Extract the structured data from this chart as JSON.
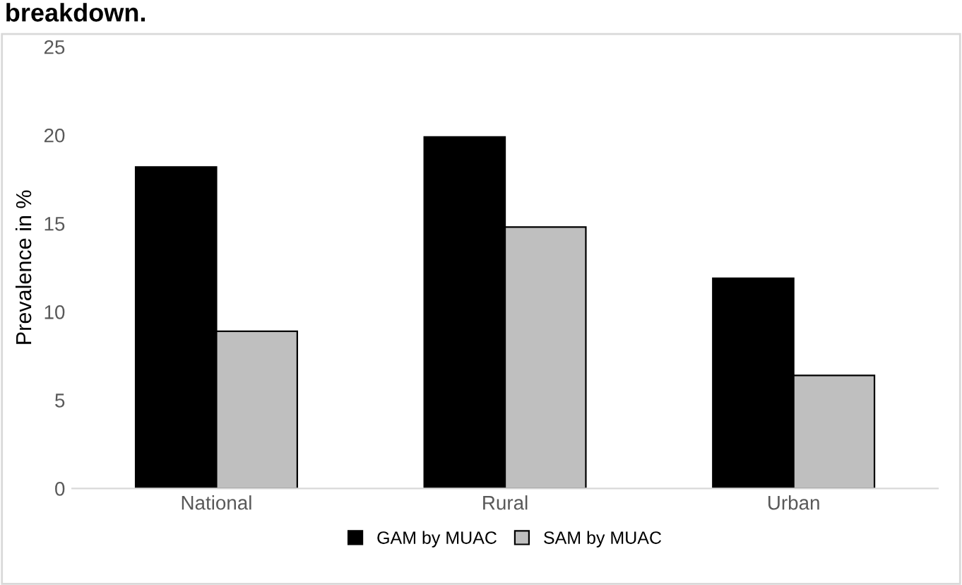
{
  "chart_data": {
    "type": "bar",
    "title": "breakdown.",
    "ylabel": "Prevalence in %",
    "categories": [
      "National",
      "Rural",
      "Urban"
    ],
    "series": [
      {
        "name": "GAM by MUAC",
        "color": "#000000",
        "values": [
          18.2,
          19.9,
          11.9
        ]
      },
      {
        "name": "SAM by MUAC",
        "color": "#bfbfbf",
        "values": [
          8.9,
          14.8,
          6.4
        ]
      }
    ],
    "ylim": [
      0,
      25
    ],
    "yticks": [
      0,
      5,
      10,
      15,
      20,
      25
    ],
    "grid": false,
    "legend": "bottom"
  }
}
